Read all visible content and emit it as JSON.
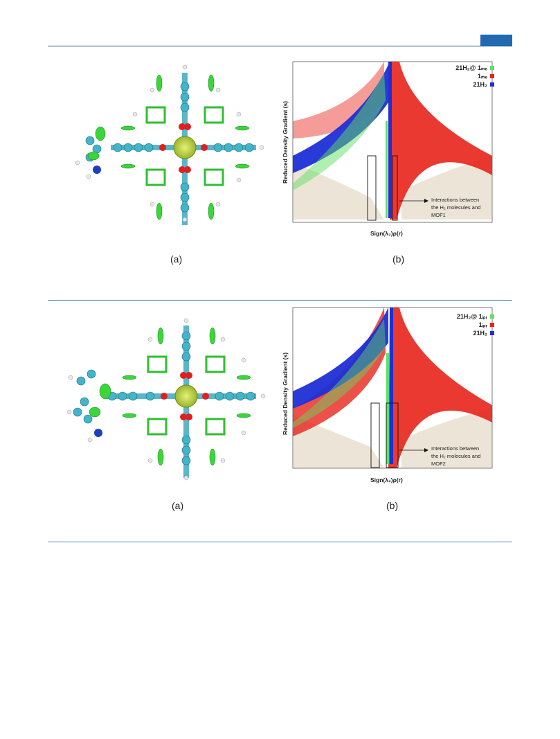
{
  "figures": [
    {
      "caption_a": "(a)",
      "caption_b": "(b)",
      "chart": {
        "ylabel": "Reduced Density Gradient (s)",
        "xlabel": "Sign(λ₂)ρ(r)",
        "legend": [
          {
            "label": "21H₂@ 1ₘₑ",
            "color": "#5fe05f"
          },
          {
            "label": "1ₘₑ",
            "color": "#e8231b"
          },
          {
            "label": "21H₂",
            "color": "#1f2fd6"
          }
        ],
        "annotation": [
          "Interactions between",
          "the H₂ molecules and",
          "MOF1"
        ]
      }
    },
    {
      "caption_a": "(a)",
      "caption_b": "(b)",
      "chart": {
        "ylabel": "Reduced Density Gradient (s)",
        "xlabel": "Sign(λ₂)ρ(r)",
        "legend": [
          {
            "label": "21H₂@ 1ᵢₚᵣ",
            "color": "#5fe05f"
          },
          {
            "label": "1ᵢₚᵣ",
            "color": "#e8231b"
          },
          {
            "label": "21H₂",
            "color": "#1f2fd6"
          }
        ],
        "annotation": [
          "Interactions between",
          "the H₂ molecules and",
          "MOF2"
        ]
      }
    }
  ],
  "chart_data": [
    {
      "type": "scatter",
      "xlabel": "Sign(λ₂)ρ(r)",
      "ylabel": "Reduced Density Gradient (s)",
      "series": [
        {
          "name": "21H₂@ 1ₘₑ",
          "color": "#5fe05f"
        },
        {
          "name": "1ₘₑ",
          "color": "#e8231b"
        },
        {
          "name": "21H₂",
          "color": "#1f2fd6"
        }
      ],
      "legend": "top-right"
    },
    {
      "type": "scatter",
      "xlabel": "Sign(λ₂)ρ(r)",
      "ylabel": "Reduced Density Gradient (s)",
      "series": [
        {
          "name": "21H₂@ 1ᵢₚᵣ",
          "color": "#5fe05f"
        },
        {
          "name": "1ᵢₚᵣ",
          "color": "#e8231b"
        },
        {
          "name": "21H₂",
          "color": "#1f2fd6"
        }
      ],
      "legend": "top-right"
    }
  ]
}
